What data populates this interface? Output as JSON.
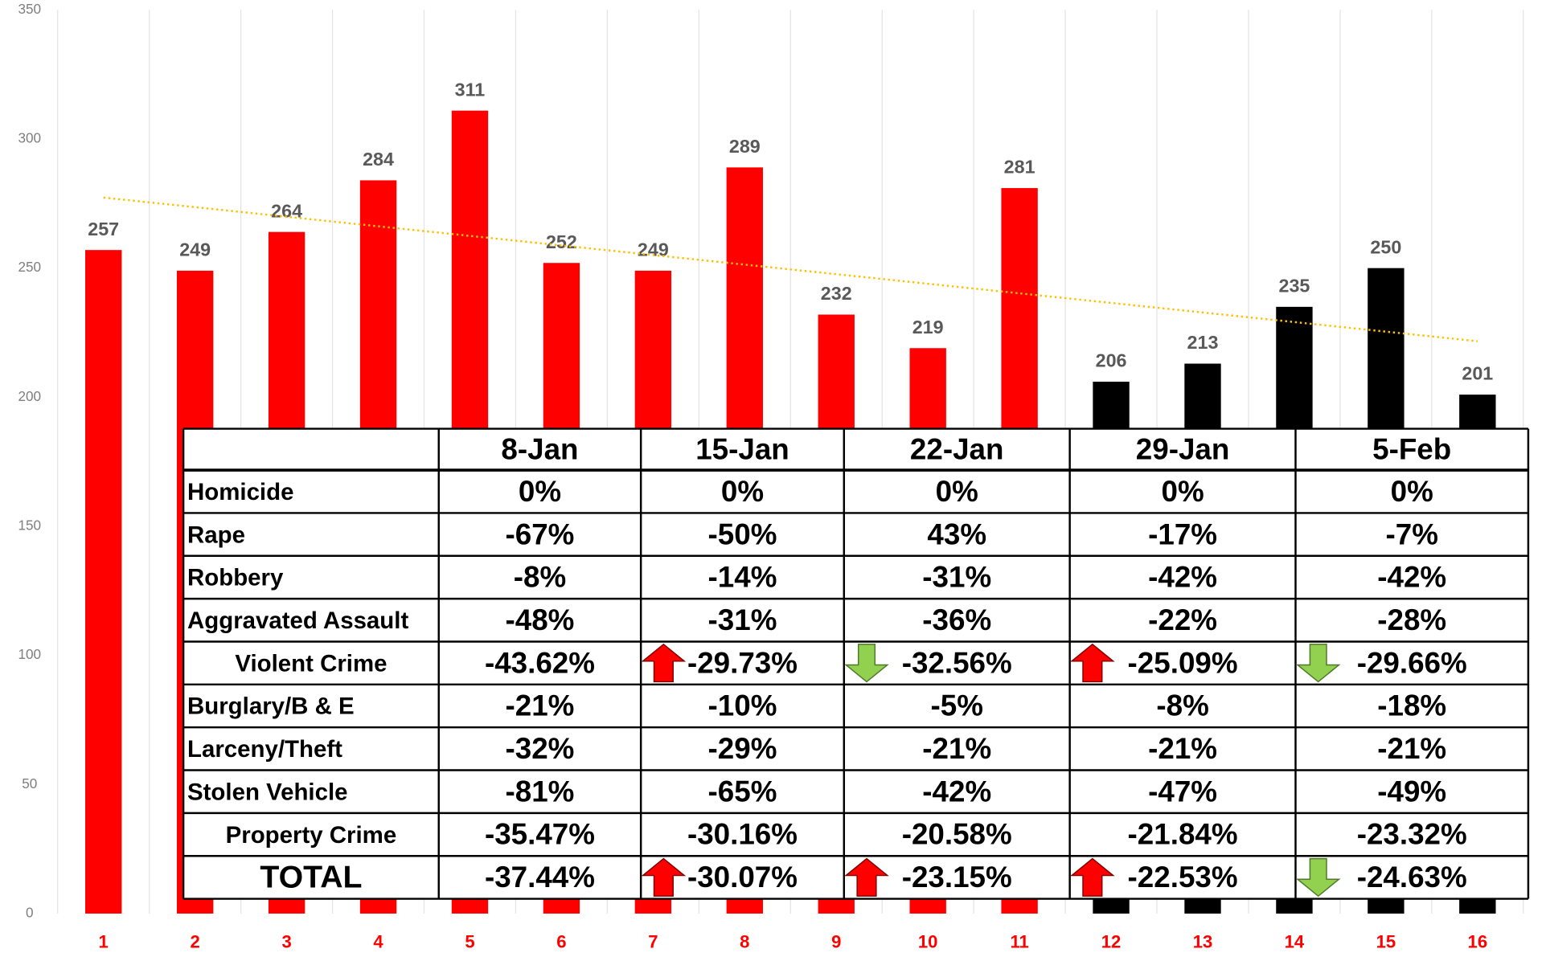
{
  "chart_data": {
    "type": "bar",
    "categories": [
      "1",
      "2",
      "3",
      "4",
      "5",
      "6",
      "7",
      "8",
      "9",
      "10",
      "11",
      "12",
      "13",
      "14",
      "15",
      "16"
    ],
    "values": [
      257,
      249,
      264,
      284,
      311,
      252,
      249,
      289,
      232,
      219,
      281,
      206,
      213,
      235,
      250,
      201
    ],
    "colors": [
      "#ff0000",
      "#ff0000",
      "#ff0000",
      "#ff0000",
      "#ff0000",
      "#ff0000",
      "#ff0000",
      "#ff0000",
      "#ff0000",
      "#ff0000",
      "#ff0000",
      "#000000",
      "#000000",
      "#000000",
      "#000000",
      "#000000"
    ],
    "ylim": [
      0,
      350
    ],
    "yticks": [
      0,
      50,
      100,
      150,
      200,
      250,
      300,
      350
    ],
    "grid": true,
    "trendline": true,
    "trendline_color": "#ffc000"
  },
  "table": {
    "columns": [
      "8-Jan",
      "15-Jan",
      "22-Jan",
      "29-Jan",
      "5-Feb"
    ],
    "rows": [
      {
        "label": "Homicide",
        "cells": [
          "0%",
          "0%",
          "0%",
          "0%",
          "0%"
        ]
      },
      {
        "label": "Rape",
        "cells": [
          "-67%",
          "-50%",
          "43%",
          "-17%",
          "-7%"
        ]
      },
      {
        "label": "Robbery",
        "cells": [
          "-8%",
          "-14%",
          "-31%",
          "-42%",
          "-42%"
        ]
      },
      {
        "label": "Aggravated Assault",
        "cells": [
          "-48%",
          "-31%",
          "-36%",
          "-22%",
          "-28%"
        ]
      },
      {
        "label": "Violent Crime",
        "summary": true,
        "cells": [
          "-43.62%",
          "-29.73%",
          "-32.56%",
          "-25.09%",
          "-29.66%"
        ],
        "arrows": [
          null,
          "up",
          "down",
          "up",
          "down"
        ]
      },
      {
        "label": "Burglary/B & E",
        "cells": [
          "-21%",
          "-10%",
          "-5%",
          "-8%",
          "-18%"
        ]
      },
      {
        "label": "Larceny/Theft",
        "cells": [
          "-32%",
          "-29%",
          "-21%",
          "-21%",
          "-21%"
        ]
      },
      {
        "label": "Stolen Vehicle",
        "cells": [
          "-81%",
          "-65%",
          "-42%",
          "-47%",
          "-49%"
        ]
      },
      {
        "label": "Property Crime",
        "summary": true,
        "cells": [
          "-35.47%",
          "-30.16%",
          "-20.58%",
          "-21.84%",
          "-23.32%"
        ]
      },
      {
        "label": "TOTAL",
        "summary": true,
        "total": true,
        "cells": [
          "-37.44%",
          "-30.07%",
          "-23.15%",
          "-22.53%",
          "-24.63%"
        ],
        "arrows": [
          null,
          "up",
          "up",
          "up",
          "down"
        ]
      }
    ]
  }
}
